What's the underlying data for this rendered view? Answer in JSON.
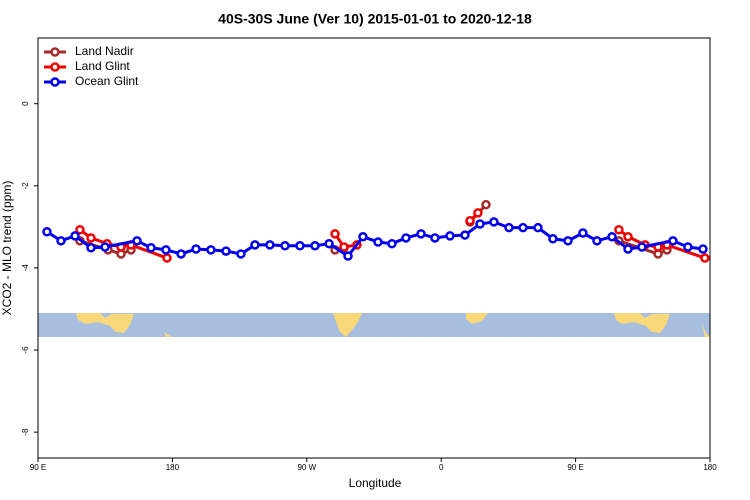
{
  "chart_data": {
    "type": "line",
    "title": "40S-30S June (Ver 10)   2015-01-01 to 2020-12-18",
    "x_label": "Longitude",
    "y_label": "XCO2 - MLO trend (ppm)",
    "xlim": [
      90,
      540
    ],
    "ylim": [
      -8.63,
      1.6
    ],
    "xticks": [
      {
        "value": 90,
        "label": "90 E"
      },
      180,
      {
        "value": 270,
        "label": "90 W"
      },
      {
        "value": 360,
        "label": "0"
      },
      {
        "value": 450,
        "label": "90 E"
      },
      {
        "value": 540,
        "label": "180"
      }
    ],
    "yticks": [
      0,
      -2,
      -4,
      -6,
      -8
    ],
    "legend": "top-left",
    "series": [
      {
        "name": "Land Nadir",
        "color": "#a52a2a",
        "x": [
          118.1,
          136.9,
          145.6,
          152.3,
          null,
          288.9,
          294.9,
          null,
          379.3,
          390.0,
          null,
          479.0,
          505.2,
          511.2
        ],
        "values": [
          -3.34,
          -3.56,
          -3.66,
          -3.56,
          null,
          -3.56,
          -3.51,
          null,
          -2.88,
          -2.46,
          null,
          -3.34,
          -3.66,
          -3.56
        ]
      },
      {
        "name": "Land Glint",
        "color": "#ee0000",
        "x": [
          118.1,
          125.5,
          136.2,
          145.6,
          152.3,
          176.4,
          null,
          288.9,
          294.9,
          303.6,
          null,
          379.3,
          384.6,
          null,
          479.0,
          485.1,
          496.5,
          505.2,
          511.2,
          536.6
        ],
        "values": [
          -3.07,
          -3.27,
          -3.41,
          -3.49,
          -3.44,
          -3.76,
          null,
          -3.17,
          -3.49,
          -3.44,
          null,
          -2.85,
          -2.66,
          null,
          -3.07,
          -3.24,
          -3.44,
          -3.49,
          -3.44,
          -3.76
        ]
      },
      {
        "name": "Ocean Glint",
        "color": "#0000ee",
        "x": [
          96.0,
          105.4,
          114.8,
          125.5,
          134.9,
          156.3,
          165.7,
          175.7,
          185.8,
          195.8,
          205.8,
          215.9,
          225.9,
          235.3,
          245.3,
          255.4,
          265.4,
          275.5,
          284.9,
          297.6,
          307.6,
          317.7,
          327.0,
          336.4,
          346.5,
          355.8,
          365.9,
          375.9,
          386.0,
          395.3,
          405.4,
          414.8,
          424.8,
          434.8,
          444.9,
          454.9,
          464.3,
          474.4,
          485.1,
          494.4,
          515.2,
          525.2,
          535.3
        ],
        "values": [
          -3.12,
          -3.34,
          -3.22,
          -3.51,
          -3.49,
          -3.34,
          -3.51,
          -3.56,
          -3.66,
          -3.54,
          -3.56,
          -3.59,
          -3.66,
          -3.44,
          -3.44,
          -3.46,
          -3.46,
          -3.46,
          -3.41,
          -3.71,
          -3.24,
          -3.37,
          -3.41,
          -3.27,
          -3.17,
          -3.27,
          -3.22,
          -3.2,
          -2.93,
          -2.88,
          -3.02,
          -3.02,
          -3.02,
          -3.29,
          -3.34,
          -3.15,
          -3.34,
          -3.24,
          -3.54,
          -3.49,
          -3.34,
          -3.49,
          -3.54
        ]
      }
    ]
  }
}
